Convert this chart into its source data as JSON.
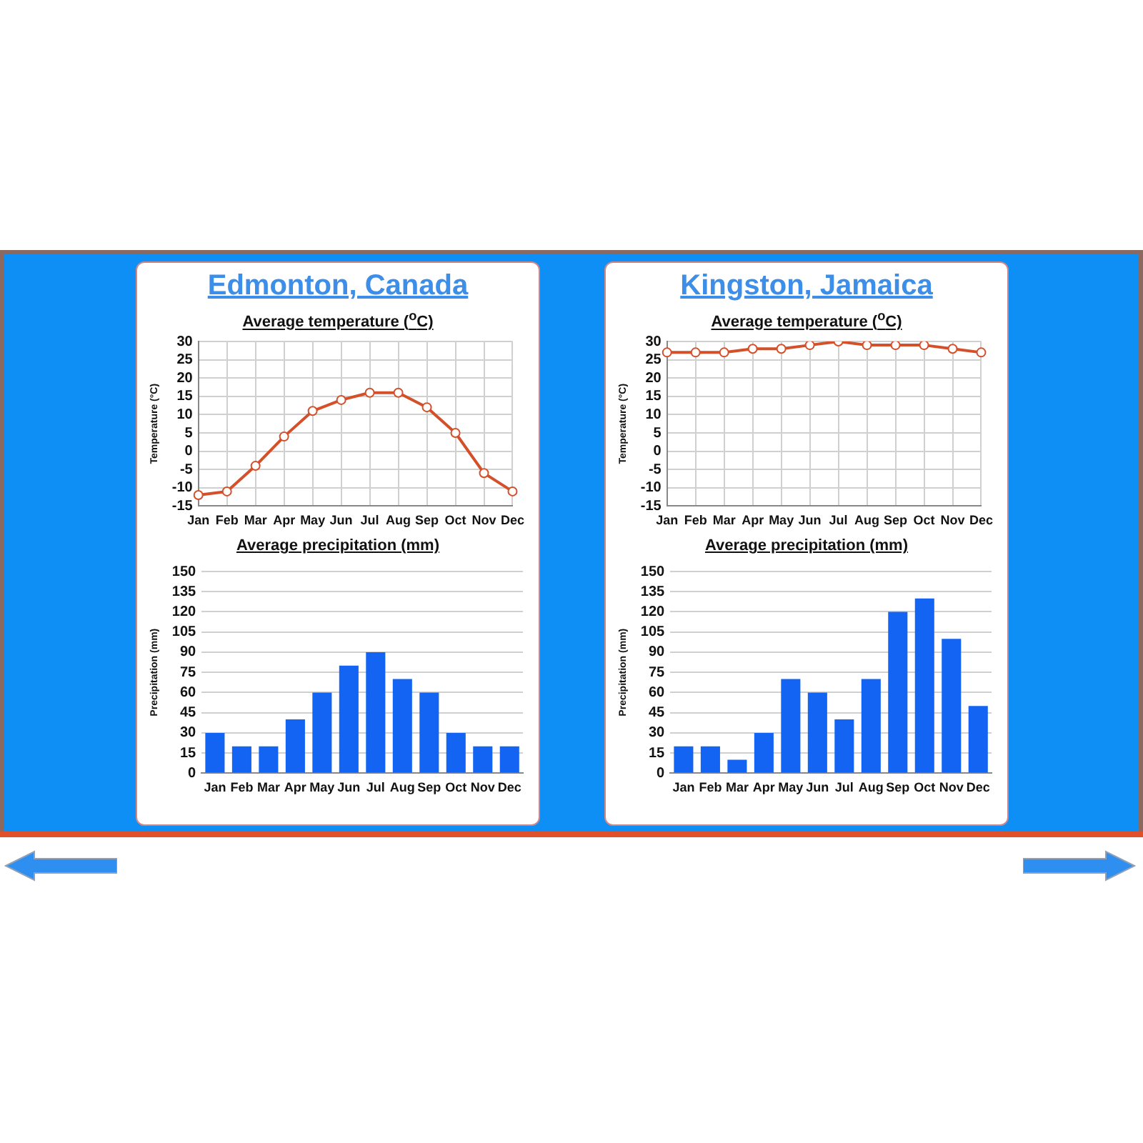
{
  "chart_data": [
    {
      "type": "line",
      "title": "Edmonton, Canada",
      "subtitle": "Average temperature ($^{o}$C)",
      "ylabel": "Temperature (°C)",
      "categories": [
        "Jan",
        "Feb",
        "Mar",
        "Apr",
        "May",
        "Jun",
        "Jul",
        "Aug",
        "Sep",
        "Oct",
        "Nov",
        "Dec"
      ],
      "values": [
        -12,
        -11,
        -4,
        4,
        11,
        14,
        16,
        16,
        12,
        5,
        -6,
        -11
      ],
      "color": "#d4502a",
      "marker": "circle",
      "ylim": [
        -15,
        30
      ],
      "yticks": [
        -15,
        -10,
        -5,
        0,
        5,
        10,
        15,
        20,
        25,
        30
      ],
      "grid": true
    },
    {
      "type": "bar",
      "title": "Average precipitation (mm)",
      "ylabel": "Precipitation (mm)",
      "categories": [
        "Jan",
        "Feb",
        "Mar",
        "Apr",
        "May",
        "Jun",
        "Jul",
        "Aug",
        "Sep",
        "Oct",
        "Nov",
        "Dec"
      ],
      "values": [
        30,
        20,
        20,
        40,
        60,
        80,
        90,
        70,
        60,
        30,
        20,
        20
      ],
      "color": "#1464f4",
      "ylim": [
        0,
        150
      ],
      "yticks": [
        0,
        15,
        30,
        45,
        60,
        75,
        90,
        105,
        120,
        135,
        150
      ],
      "grid": "y"
    },
    {
      "type": "line",
      "title": "Kingston, Jamaica",
      "subtitle": "Average temperature ($^{o}$C)",
      "ylabel": "Temperature (°C)",
      "categories": [
        "Jan",
        "Feb",
        "Mar",
        "Apr",
        "May",
        "Jun",
        "Jul",
        "Aug",
        "Sep",
        "Oct",
        "Nov",
        "Dec"
      ],
      "values": [
        27,
        27,
        27,
        28,
        28,
        29,
        30,
        29,
        29,
        29,
        28,
        27
      ],
      "color": "#d4502a",
      "marker": "circle",
      "ylim": [
        -15,
        30
      ],
      "yticks": [
        -15,
        -10,
        -5,
        0,
        5,
        10,
        15,
        20,
        25,
        30
      ],
      "grid": true
    },
    {
      "type": "bar",
      "title": "Average precipitation (mm)",
      "ylabel": "Precipitation (mm)",
      "categories": [
        "Jan",
        "Feb",
        "Mar",
        "Apr",
        "May",
        "Jun",
        "Jul",
        "Aug",
        "Sep",
        "Oct",
        "Nov",
        "Dec"
      ],
      "values": [
        20,
        20,
        10,
        30,
        70,
        60,
        40,
        70,
        120,
        130,
        100,
        50
      ],
      "color": "#1464f4",
      "ylim": [
        0,
        150
      ],
      "yticks": [
        0,
        15,
        30,
        45,
        60,
        75,
        90,
        105,
        120,
        135,
        150
      ],
      "grid": "y"
    }
  ]
}
